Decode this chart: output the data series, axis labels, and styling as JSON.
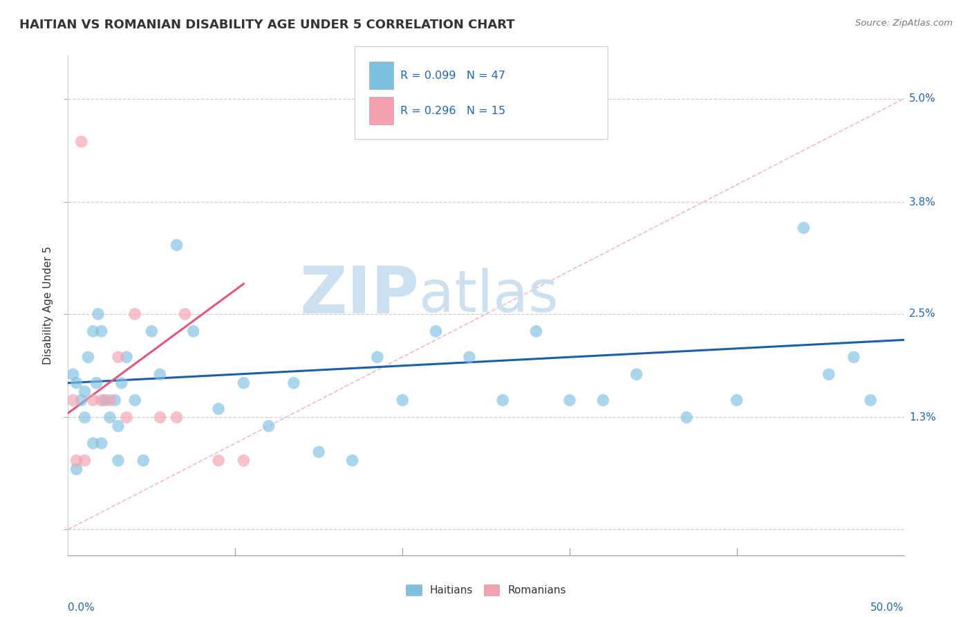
{
  "title": "HAITIAN VS ROMANIAN DISABILITY AGE UNDER 5 CORRELATION CHART",
  "source": "Source: ZipAtlas.com",
  "ylabel": "Disability Age Under 5",
  "yticks": [
    0.0,
    1.3,
    2.5,
    3.8,
    5.0
  ],
  "ytick_labels": [
    "",
    "1.3%",
    "2.5%",
    "3.8%",
    "5.0%"
  ],
  "xmin": 0.0,
  "xmax": 50.0,
  "ymin": -0.3,
  "ymax": 5.5,
  "haitian_color": "#7fbfdf",
  "romanian_color": "#f4a0b0",
  "haitian_line_color": "#1a5fa8",
  "romanian_line_color": "#e05878",
  "diagonal_color": "#f0b8c8",
  "watermark_zip": "ZIP",
  "watermark_atlas": "atlas",
  "watermark_color": "#cce0f0",
  "haitian_x": [
    0.3,
    0.5,
    0.8,
    1.0,
    1.2,
    1.5,
    1.7,
    1.8,
    2.0,
    2.2,
    2.5,
    2.8,
    3.0,
    3.2,
    3.5,
    4.0,
    4.5,
    5.0,
    5.5,
    6.5,
    7.5,
    9.0,
    10.5,
    12.0,
    13.5,
    15.0,
    17.0,
    18.5,
    20.0,
    22.0,
    24.0,
    26.0,
    28.0,
    30.0,
    32.0,
    34.0,
    37.0,
    40.0,
    44.0,
    45.5,
    47.0,
    48.0,
    0.5,
    1.0,
    1.5,
    2.0,
    3.0
  ],
  "haitian_y": [
    1.8,
    1.7,
    1.5,
    1.6,
    2.0,
    2.3,
    1.7,
    2.5,
    2.3,
    1.5,
    1.3,
    1.5,
    1.2,
    1.7,
    2.0,
    1.5,
    0.8,
    2.3,
    1.8,
    3.3,
    2.3,
    1.4,
    1.7,
    1.2,
    1.7,
    0.9,
    0.8,
    2.0,
    1.5,
    2.3,
    2.0,
    1.5,
    2.3,
    1.5,
    1.5,
    1.8,
    1.3,
    1.5,
    3.5,
    1.8,
    2.0,
    1.5,
    0.7,
    1.3,
    1.0,
    1.0,
    0.8
  ],
  "romanian_x": [
    0.3,
    0.5,
    0.8,
    1.0,
    1.5,
    2.0,
    2.5,
    3.0,
    3.5,
    4.0,
    5.5,
    6.5,
    7.0,
    9.0,
    10.5
  ],
  "romanian_y": [
    1.5,
    0.8,
    4.5,
    0.8,
    1.5,
    1.5,
    1.5,
    2.0,
    1.3,
    2.5,
    1.3,
    1.3,
    2.5,
    0.8,
    0.8
  ],
  "haitian_line_x0": 0.0,
  "haitian_line_x1": 50.0,
  "haitian_line_y0": 1.7,
  "haitian_line_y1": 2.2,
  "romanian_line_x0": 0.0,
  "romanian_line_x1": 10.5,
  "romanian_line_y0": 1.35,
  "romanian_line_y1": 2.85
}
